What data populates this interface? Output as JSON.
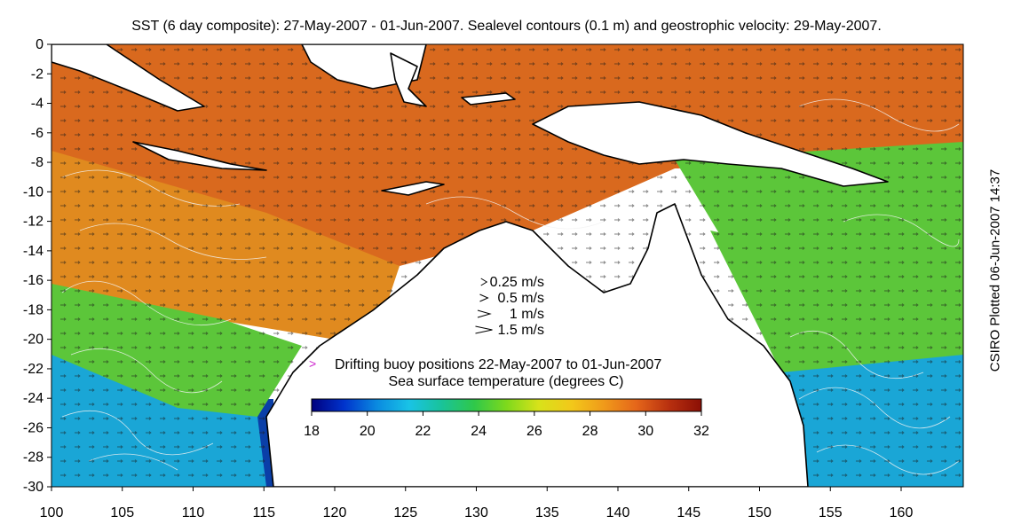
{
  "title": "SST (6 day composite): 27-May-2007 - 01-Jun-2007. Sealevel contours (0.1 m) and geostrophic velocity: 29-May-2007.",
  "credit": "CSIRO Plotted 06-Jun-2007 14:37",
  "axes": {
    "x_ticks": [
      "100",
      "105",
      "110",
      "115",
      "120",
      "125",
      "130",
      "135",
      "140",
      "145",
      "150",
      "155",
      "160"
    ],
    "y_ticks": [
      "0",
      "-2",
      "-4",
      "-6",
      "-8",
      "-10",
      "-12",
      "-14",
      "-16",
      "-18",
      "-20",
      "-22",
      "-24",
      "-26",
      "-28",
      "-30"
    ]
  },
  "velocity_legend": [
    {
      "label": "0.25 m/s",
      "speed": 0.25
    },
    {
      "label": "0.5 m/s",
      "speed": 0.5
    },
    {
      "label": "1 m/s",
      "speed": 1
    },
    {
      "label": "1.5 m/s",
      "speed": 1.5
    }
  ],
  "buoy_legend": {
    "marker": ">",
    "label": "Drifting buoy positions 22-May-2007 to 01-Jun-2007",
    "color": "#cc22cc"
  },
  "colorbar": {
    "title": "Sea surface temperature (degrees C)",
    "ticks": [
      "18",
      "20",
      "22",
      "24",
      "26",
      "28",
      "30",
      "32"
    ],
    "colors": [
      "#00007f",
      "#0033cc",
      "#0a8ae0",
      "#19c3e6",
      "#19c39a",
      "#2fc84a",
      "#7ed91c",
      "#d8e21a",
      "#f2c81a",
      "#f09a1a",
      "#e5661a",
      "#b8300f",
      "#8b0f05"
    ]
  },
  "colors": {
    "land": "#ffffff",
    "coast": "#000000",
    "contour": "#f2f2f2",
    "warm_sea": "#d9691e",
    "tropical_sea": "#e08a1f",
    "subtropical_sea": "#5cc63a",
    "cool_sea": "#1aa6d6",
    "cold_sea": "#0a3fa8"
  }
}
